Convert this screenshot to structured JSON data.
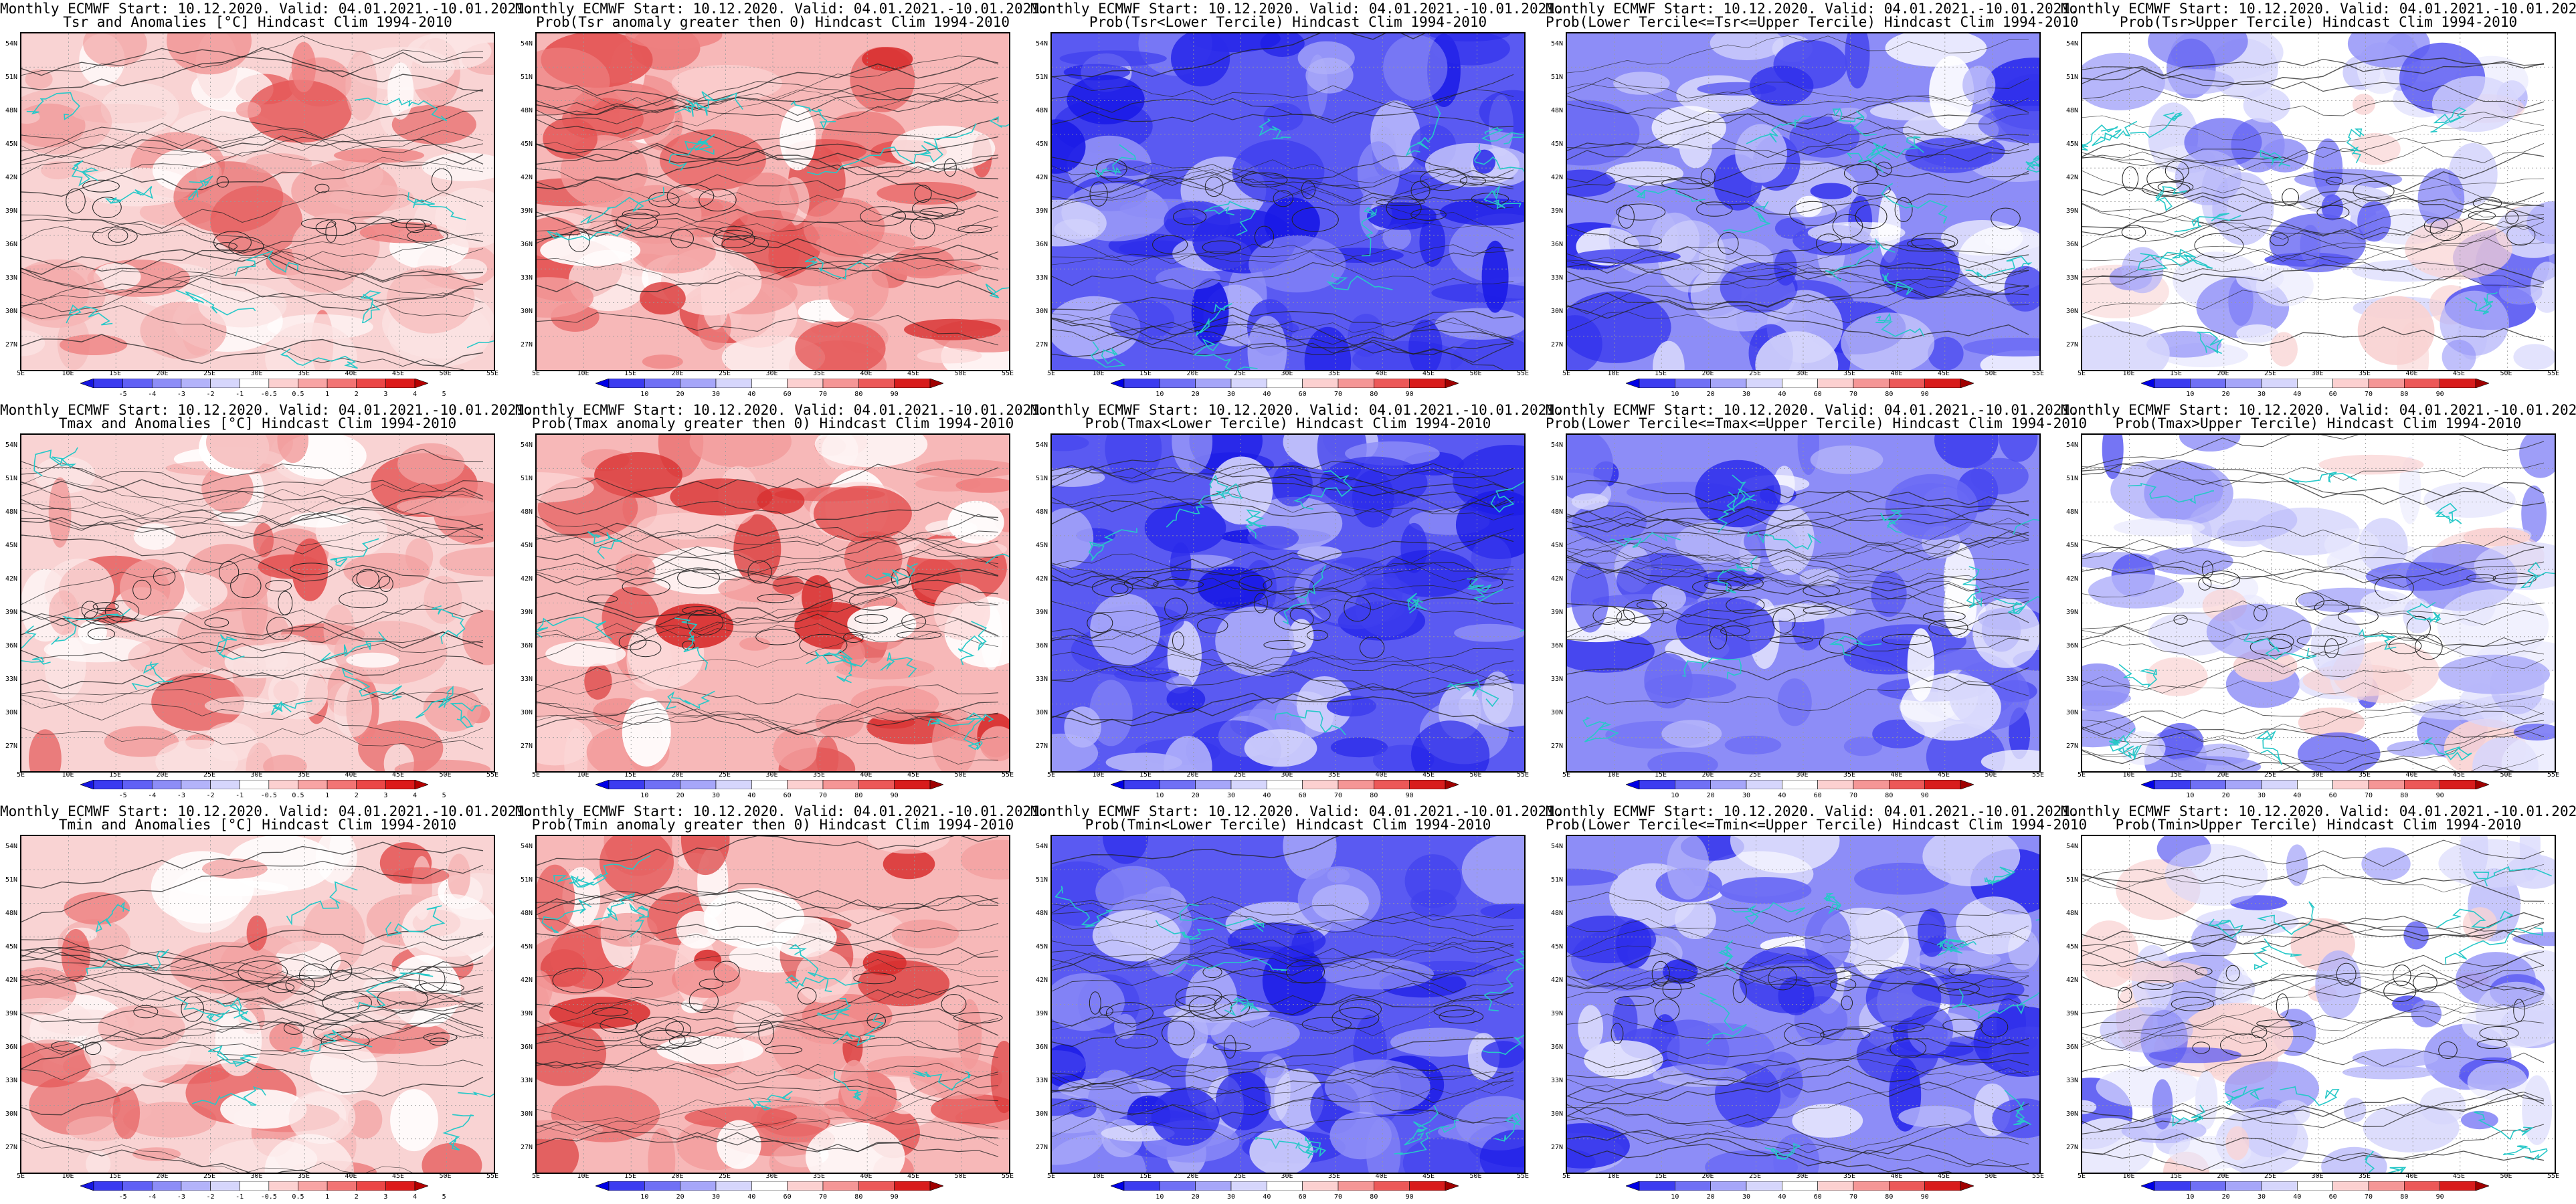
{
  "header_prefix": "Monthly ECMWF Start: 10.12.2020. Valid: 04.01.2021.-10.01.2021.",
  "lat_labels": [
    "54N",
    "51N",
    "48N",
    "45N",
    "42N",
    "39N",
    "36N",
    "33N",
    "30N",
    "27N"
  ],
  "lon_labels": [
    "5E",
    "10E",
    "15E",
    "20E",
    "25E",
    "30E",
    "35E",
    "40E",
    "45E",
    "50E",
    "55E"
  ],
  "colorbars": {
    "anomaly": {
      "ticks": [
        "-5",
        "-4",
        "-3",
        "-2",
        "-1",
        "-0.5",
        "0.5",
        "1",
        "2",
        "3",
        "4",
        "5"
      ],
      "colors": [
        "#1515e0",
        "#3a3af0",
        "#6060f5",
        "#8d8df7",
        "#b3b3fa",
        "#d6d6fc",
        "#ffffff",
        "#fcd0d0",
        "#f8a4a4",
        "#f27474",
        "#eb4646",
        "#dc1a1a",
        "#b60000"
      ]
    },
    "probability": {
      "ticks": [
        "10",
        "20",
        "30",
        "40",
        "60",
        "70",
        "80",
        "90"
      ],
      "colors": [
        "#0000e6",
        "#3c3cf0",
        "#7070f5",
        "#a6a6f9",
        "#d6d6fc",
        "#ffffff",
        "#fcd0d0",
        "#f59696",
        "#ec5858",
        "#d81c1c",
        "#a00000"
      ]
    }
  },
  "rows": [
    {
      "variable": "Tsr",
      "panels": [
        {
          "title": "Tsr and Anomalies [°C] Hindcast Clim 1994-2010",
          "bar": "anomaly",
          "scheme": "warm_anomaly"
        },
        {
          "title": "Prob(Tsr anomaly greater then 0) Hindcast Clim 1994-2010",
          "bar": "probability",
          "scheme": "warm_prob"
        },
        {
          "title": "Prob(Tsr<Lower Tercile) Hindcast Clim 1994-2010",
          "bar": "probability",
          "scheme": "blue_strong"
        },
        {
          "title": "Prob(Lower Tercile<=Tsr<=Upper Tercile) Hindcast Clim 1994-2010",
          "bar": "probability",
          "scheme": "blue_mid"
        },
        {
          "title": "Prob(Tsr>Upper Tercile) Hindcast Clim 1994-2010",
          "bar": "probability",
          "scheme": "pale_mixed"
        }
      ]
    },
    {
      "variable": "Tmax",
      "panels": [
        {
          "title": "Tmax and Anomalies [°C] Hindcast Clim 1994-2010",
          "bar": "anomaly",
          "scheme": "warm_anomaly"
        },
        {
          "title": "Prob(Tmax anomaly greater then 0) Hindcast Clim 1994-2010",
          "bar": "probability",
          "scheme": "warm_prob"
        },
        {
          "title": "Prob(Tmax<Lower Tercile) Hindcast Clim 1994-2010",
          "bar": "probability",
          "scheme": "blue_strong"
        },
        {
          "title": "Prob(Lower Tercile<=Tmax<=Upper Tercile) Hindcast Clim 1994-2010",
          "bar": "probability",
          "scheme": "blue_mid"
        },
        {
          "title": "Prob(Tmax>Upper Tercile) Hindcast Clim 1994-2010",
          "bar": "probability",
          "scheme": "pale_mixed"
        }
      ]
    },
    {
      "variable": "Tmin",
      "panels": [
        {
          "title": "Tmin and Anomalies [°C] Hindcast Clim 1994-2010",
          "bar": "anomaly",
          "scheme": "warm_anomaly"
        },
        {
          "title": "Prob(Tmin anomaly greater then 0) Hindcast Clim 1994-2010",
          "bar": "probability",
          "scheme": "warm_prob"
        },
        {
          "title": "Prob(Tmin<Lower Tercile) Hindcast Clim 1994-2010",
          "bar": "probability",
          "scheme": "blue_strong"
        },
        {
          "title": "Prob(Lower Tercile<=Tmin<=Upper Tercile) Hindcast Clim 1994-2010",
          "bar": "probability",
          "scheme": "blue_mid"
        },
        {
          "title": "Prob(Tmin>Upper Tercile) Hindcast Clim 1994-2010",
          "bar": "probability",
          "scheme": "pale_mixed"
        }
      ]
    }
  ],
  "schemes": {
    "warm_anomaly": {
      "base": "#f9d3d3",
      "blobs": [
        "#f2a0a0",
        "#ee8080",
        "#e45555",
        "#ffffff",
        "#fbe3e3",
        "#f5b5b5"
      ]
    },
    "warm_prob": {
      "base": "#f7b8b8",
      "blobs": [
        "#ee8080",
        "#e45555",
        "#d83030",
        "#fcd8d8",
        "#ffffff",
        "#f29a9a"
      ]
    },
    "blue_strong": {
      "base": "#5a5af2",
      "blobs": [
        "#2a2aea",
        "#1a1ae6",
        "#8d8df7",
        "#b3b3fa",
        "#4040ee",
        "#d6d6fc"
      ]
    },
    "blue_mid": {
      "base": "#8d8df7",
      "blobs": [
        "#4a4af0",
        "#2d2deb",
        "#b9b9fa",
        "#d9d9fc",
        "#6a6af4",
        "#ffffff"
      ]
    },
    "pale_mixed": {
      "base": "#ffffff",
      "blobs": [
        "#d6d6fc",
        "#b3b3fa",
        "#8d8df7",
        "#f9d3d3",
        "#5a5af2",
        "#e8e8fd"
      ]
    }
  },
  "contour_color": "#222222",
  "coast_color": "#27c8c8"
}
